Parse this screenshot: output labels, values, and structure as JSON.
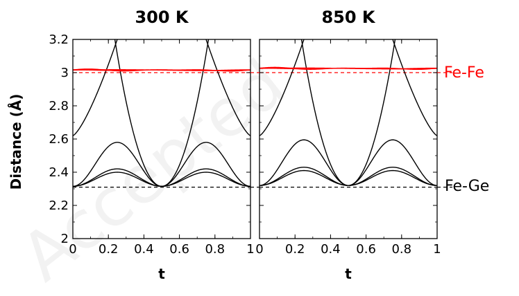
{
  "watermark": "Accepted",
  "chart_data": {
    "type": "line",
    "ylabel": "Distance (Å)",
    "xlabel": "t",
    "xlim": [
      0,
      1
    ],
    "ylim": [
      2,
      3.2
    ],
    "xticks": [
      "0",
      "0.2",
      "0.4",
      "0.6",
      "0.8",
      "1"
    ],
    "yticks": [
      "2",
      "2.2",
      "2.4",
      "2.6",
      "2.8",
      "3",
      "3.2"
    ],
    "reference_lines": [
      {
        "label": "Fe-Fe",
        "y": 3.0,
        "color": "#ff0000",
        "style": "dashed"
      },
      {
        "label": "Fe-Ge",
        "y": 2.31,
        "color": "#000000",
        "style": "dashed"
      }
    ],
    "panels": [
      {
        "title": "300 K",
        "fe_fe_level": 3.015,
        "fe_ge": {
          "rising_left": {
            "x": [
              0,
              0.25
            ],
            "y": [
              2.62,
              3.2
            ]
          },
          "minimum": 2.315,
          "hump_peak": 2.58,
          "edge_values": [
            2.42,
            2.4
          ]
        }
      },
      {
        "title": "850 K",
        "fe_fe_level": 3.025,
        "fe_ge": {
          "rising_left": {
            "x": [
              0,
              0.25
            ],
            "y": [
              2.62,
              3.2
            ]
          },
          "minimum": 2.32,
          "hump_peak": 2.595,
          "edge_values": [
            2.43,
            2.41
          ]
        }
      }
    ]
  }
}
